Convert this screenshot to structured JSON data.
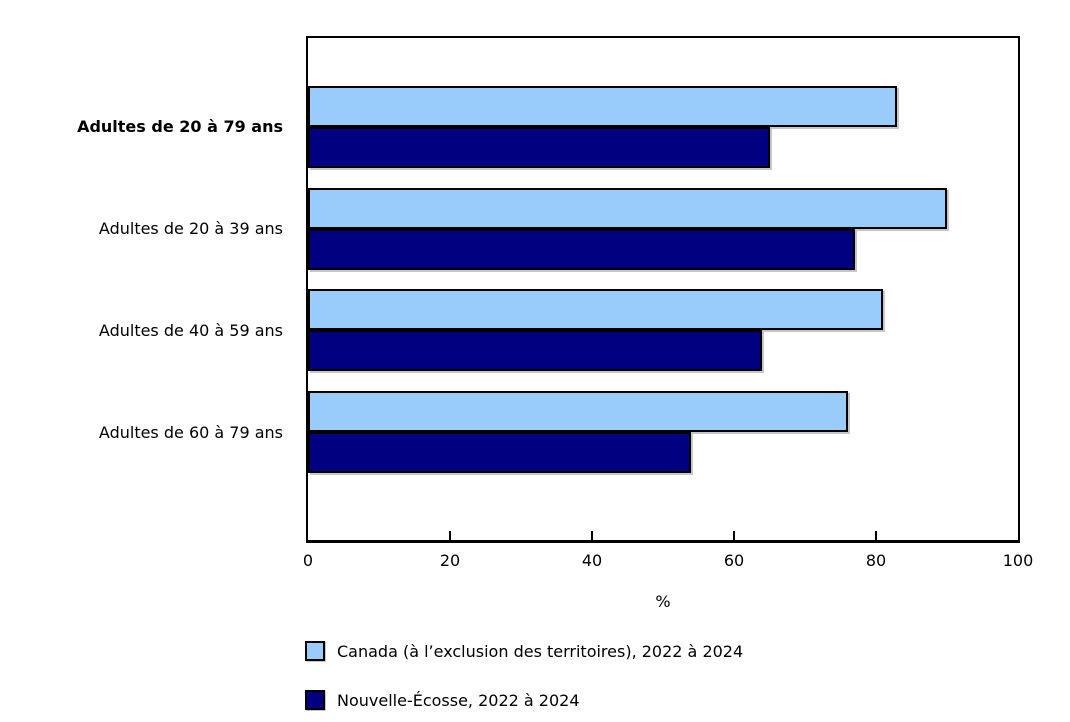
{
  "chart_data": {
    "type": "bar",
    "orientation": "horizontal",
    "title": "",
    "categories": [
      "Adultes de 20 à 79 ans",
      "Adultes de 20 à 39 ans",
      "Adultes de 40 à 59 ans",
      "Adultes de 60 à 79 ans"
    ],
    "bold_category_index": 0,
    "series": [
      {
        "name": "Canada (à l’exclusion des territoires), 2022 à 2024",
        "color": "#99CCFB",
        "values": [
          83,
          90,
          81,
          76
        ]
      },
      {
        "name": "Nouvelle-Écosse, 2022 à 2024",
        "color": "#000080",
        "values": [
          65,
          77,
          64,
          54
        ]
      }
    ],
    "xlabel": "%",
    "xlim": [
      0,
      100
    ],
    "xticks": [
      0,
      20,
      40,
      60,
      80,
      100
    ],
    "grid": false,
    "legend_position": "bottom-left",
    "bar_border_color": "#000000",
    "axis_color": "#000000"
  }
}
